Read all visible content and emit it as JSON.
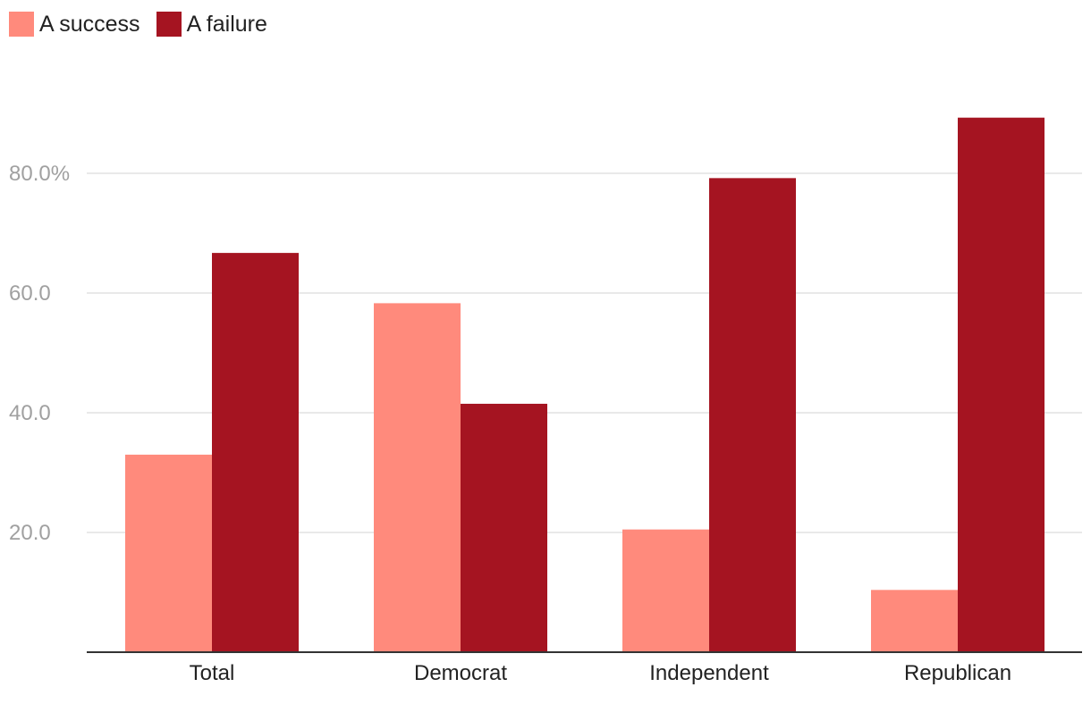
{
  "chart_data": {
    "type": "bar",
    "categories": [
      "Total",
      "Democrat",
      "Independent",
      "Republican"
    ],
    "series": [
      {
        "name": "A success",
        "values": [
          33,
          58.3,
          20.5,
          10.4
        ],
        "color": "#ff8a7c"
      },
      {
        "name": "A failure",
        "values": [
          66.7,
          41.5,
          79.2,
          89.3
        ],
        "color": "#a51421"
      }
    ],
    "y_ticks": [
      {
        "value": 20,
        "label": "20.0"
      },
      {
        "value": 40,
        "label": "40.0"
      },
      {
        "value": 60,
        "label": "60.0"
      },
      {
        "value": 80,
        "label": "80.0%"
      }
    ],
    "ylim": [
      0,
      100
    ],
    "grid": true,
    "legend_position": "top-left",
    "title": "",
    "xlabel": "",
    "ylabel": ""
  }
}
